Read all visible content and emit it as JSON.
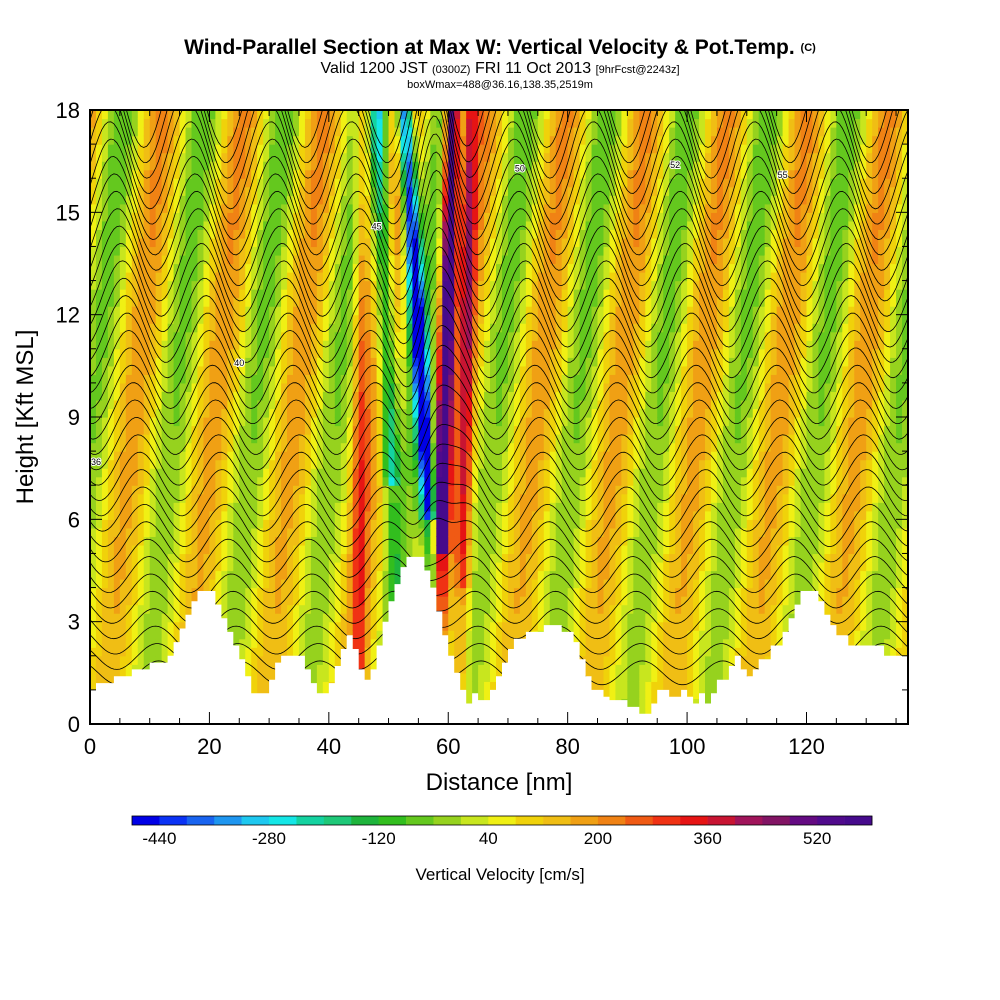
{
  "title": {
    "main": "Wind-Parallel Section at Max W: Vertical Velocity & Pot.Temp.",
    "copyright": "(C)",
    "valid_prefix": "Valid 1200 JST",
    "valid_zulu": "(0300Z)",
    "valid_date": "FRI 11 Oct 2013",
    "forecast": "[9hrFcst@2243z]",
    "box_info": "boxWmax=488@36.16,138.35,2519m"
  },
  "chart_data": {
    "type": "heatmap",
    "xlabel": "Distance [nm]",
    "ylabel": "Height [Kft MSL]",
    "xlim": [
      0,
      137
    ],
    "ylim": [
      0,
      18
    ],
    "xticks": [
      0,
      20,
      40,
      60,
      80,
      100,
      120
    ],
    "yticks": [
      0,
      3,
      6,
      9,
      12,
      15,
      18
    ],
    "colorbar": {
      "title": "Vertical Velocity [cm/s]",
      "min": -480,
      "max": 600,
      "step": 40,
      "tick_labels": [
        -440,
        -280,
        -120,
        40,
        200,
        360,
        520
      ],
      "colors": [
        "#0000e6",
        "#0a32f5",
        "#1964f0",
        "#1e96f0",
        "#1ec8f0",
        "#14e6e6",
        "#14d2a0",
        "#1ec878",
        "#1eb43c",
        "#32be1e",
        "#64c81e",
        "#96d21e",
        "#c8e61e",
        "#f0f014",
        "#f0d20a",
        "#f0be14",
        "#f0a014",
        "#f08214",
        "#f05a14",
        "#f03214",
        "#e61414",
        "#c81432",
        "#a0145a",
        "#821464",
        "#640a82",
        "#500a8c",
        "#460a8c"
      ]
    },
    "terrain_top_kft": [
      [
        0,
        1.0
      ],
      [
        1,
        1.0
      ],
      [
        1,
        1.2
      ],
      [
        4,
        1.2
      ],
      [
        4,
        1.4
      ],
      [
        7,
        1.4
      ],
      [
        7,
        1.6
      ],
      [
        10,
        1.6
      ],
      [
        10,
        1.8
      ],
      [
        13,
        1.8
      ],
      [
        13,
        2.0
      ],
      [
        14,
        2.0
      ],
      [
        14,
        2.4
      ],
      [
        15,
        2.4
      ],
      [
        15,
        2.8
      ],
      [
        16,
        2.8
      ],
      [
        16,
        3.2
      ],
      [
        17,
        3.2
      ],
      [
        17,
        3.6
      ],
      [
        18,
        3.6
      ],
      [
        18,
        3.9
      ],
      [
        21,
        3.9
      ],
      [
        21,
        3.5
      ],
      [
        22,
        3.5
      ],
      [
        22,
        3.1
      ],
      [
        23,
        3.1
      ],
      [
        23,
        2.7
      ],
      [
        24,
        2.7
      ],
      [
        24,
        2.3
      ],
      [
        25,
        2.3
      ],
      [
        25,
        1.9
      ],
      [
        26,
        1.9
      ],
      [
        26,
        1.4
      ],
      [
        27,
        1.4
      ],
      [
        27,
        0.9
      ],
      [
        30,
        0.9
      ],
      [
        30,
        1.3
      ],
      [
        31,
        1.3
      ],
      [
        31,
        1.8
      ],
      [
        32,
        1.8
      ],
      [
        32,
        2.0
      ],
      [
        36,
        2.0
      ],
      [
        36,
        1.6
      ],
      [
        37,
        1.6
      ],
      [
        37,
        1.2
      ],
      [
        38,
        1.2
      ],
      [
        38,
        0.9
      ],
      [
        40,
        0.9
      ],
      [
        40,
        1.2
      ],
      [
        41,
        1.2
      ],
      [
        41,
        1.7
      ],
      [
        42,
        1.7
      ],
      [
        42,
        2.2
      ],
      [
        43,
        2.2
      ],
      [
        43,
        2.6
      ],
      [
        44,
        2.6
      ],
      [
        44,
        2.2
      ],
      [
        45,
        2.2
      ],
      [
        45,
        1.6
      ],
      [
        46,
        1.6
      ],
      [
        46,
        1.3
      ],
      [
        47,
        1.3
      ],
      [
        47,
        1.6
      ],
      [
        48,
        1.6
      ],
      [
        48,
        2.3
      ],
      [
        49,
        2.3
      ],
      [
        49,
        3.0
      ],
      [
        50,
        3.0
      ],
      [
        50,
        3.6
      ],
      [
        51,
        3.6
      ],
      [
        51,
        4.1
      ],
      [
        52,
        4.1
      ],
      [
        52,
        4.6
      ],
      [
        53,
        4.6
      ],
      [
        53,
        4.9
      ],
      [
        56,
        4.9
      ],
      [
        56,
        4.5
      ],
      [
        57,
        4.5
      ],
      [
        57,
        4.0
      ],
      [
        58,
        4.0
      ],
      [
        58,
        3.3
      ],
      [
        59,
        3.3
      ],
      [
        59,
        2.6
      ],
      [
        60,
        2.6
      ],
      [
        60,
        2.0
      ],
      [
        61,
        2.0
      ],
      [
        61,
        1.5
      ],
      [
        62,
        1.5
      ],
      [
        62,
        1.0
      ],
      [
        63,
        1.0
      ],
      [
        63,
        0.6
      ],
      [
        64,
        0.6
      ],
      [
        64,
        0.9
      ],
      [
        65,
        0.9
      ],
      [
        65,
        0.7
      ],
      [
        67,
        0.7
      ],
      [
        67,
        1.0
      ],
      [
        68,
        1.0
      ],
      [
        68,
        1.4
      ],
      [
        69,
        1.4
      ],
      [
        69,
        1.8
      ],
      [
        70,
        1.8
      ],
      [
        70,
        2.2
      ],
      [
        71,
        2.2
      ],
      [
        71,
        2.5
      ],
      [
        73,
        2.5
      ],
      [
        73,
        2.7
      ],
      [
        76,
        2.7
      ],
      [
        76,
        2.9
      ],
      [
        79,
        2.9
      ],
      [
        79,
        2.7
      ],
      [
        81,
        2.7
      ],
      [
        81,
        2.4
      ],
      [
        82,
        2.4
      ],
      [
        82,
        1.9
      ],
      [
        83,
        1.9
      ],
      [
        83,
        1.4
      ],
      [
        84,
        1.4
      ],
      [
        84,
        1.0
      ],
      [
        86,
        1.0
      ],
      [
        86,
        0.8
      ],
      [
        87,
        0.8
      ],
      [
        87,
        0.7
      ],
      [
        90,
        0.7
      ],
      [
        90,
        0.5
      ],
      [
        92,
        0.5
      ],
      [
        92,
        0.3
      ],
      [
        94,
        0.3
      ],
      [
        94,
        0.6
      ],
      [
        95,
        0.6
      ],
      [
        95,
        1.0
      ],
      [
        97,
        1.0
      ],
      [
        97,
        0.8
      ],
      [
        99,
        0.8
      ],
      [
        99,
        1.0
      ],
      [
        100,
        1.0
      ],
      [
        100,
        0.8
      ],
      [
        101,
        0.8
      ],
      [
        101,
        0.6
      ],
      [
        102,
        0.6
      ],
      [
        102,
        0.9
      ],
      [
        103,
        0.9
      ],
      [
        103,
        0.6
      ],
      [
        104,
        0.6
      ],
      [
        104,
        0.9
      ],
      [
        105,
        0.9
      ],
      [
        105,
        1.3
      ],
      [
        107,
        1.3
      ],
      [
        107,
        1.7
      ],
      [
        108,
        1.7
      ],
      [
        108,
        2.0
      ],
      [
        109,
        2.0
      ],
      [
        109,
        1.6
      ],
      [
        110,
        1.6
      ],
      [
        110,
        1.4
      ],
      [
        111,
        1.4
      ],
      [
        111,
        1.6
      ],
      [
        112,
        1.6
      ],
      [
        112,
        1.9
      ],
      [
        114,
        1.9
      ],
      [
        114,
        2.3
      ],
      [
        116,
        2.3
      ],
      [
        116,
        2.7
      ],
      [
        117,
        2.7
      ],
      [
        117,
        3.1
      ],
      [
        118,
        3.1
      ],
      [
        118,
        3.5
      ],
      [
        119,
        3.5
      ],
      [
        119,
        3.9
      ],
      [
        122,
        3.9
      ],
      [
        122,
        3.6
      ],
      [
        123,
        3.6
      ],
      [
        123,
        3.2
      ],
      [
        124,
        3.2
      ],
      [
        124,
        2.9
      ],
      [
        125,
        2.9
      ],
      [
        125,
        2.6
      ],
      [
        127,
        2.6
      ],
      [
        127,
        2.3
      ],
      [
        133,
        2.3
      ],
      [
        133,
        2.0
      ],
      [
        137,
        2.0
      ]
    ],
    "isentrope_labels": [
      {
        "x": 1,
        "y": 7.6,
        "text": "36"
      },
      {
        "x": 25,
        "y": 10.5,
        "text": "40"
      },
      {
        "x": 48,
        "y": 14.5,
        "text": "45"
      },
      {
        "x": 72,
        "y": 16.2,
        "text": "50"
      },
      {
        "x": 98,
        "y": 16.3,
        "text": "52"
      },
      {
        "x": 116,
        "y": 16.0,
        "text": "55"
      }
    ]
  }
}
